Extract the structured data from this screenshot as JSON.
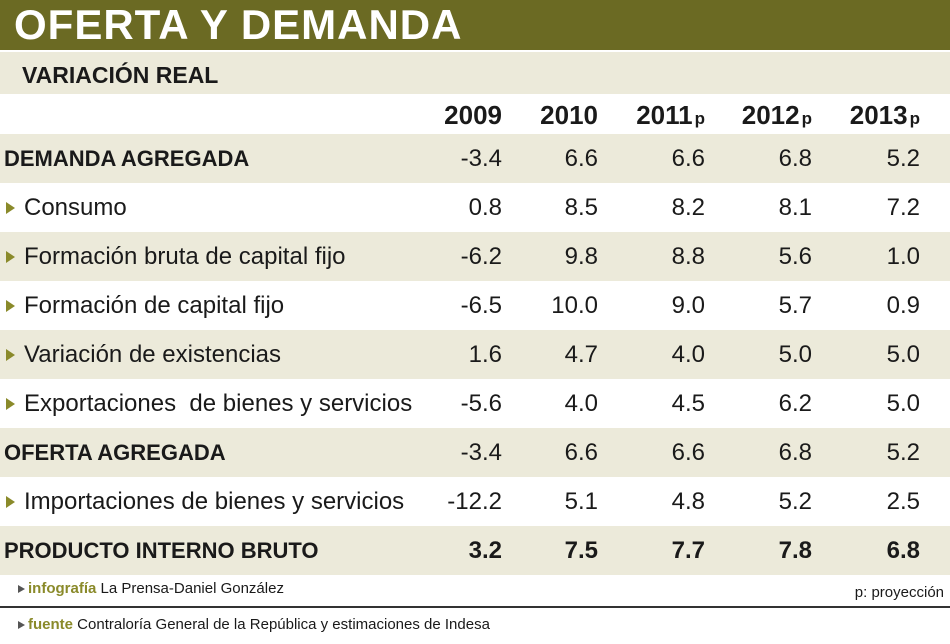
{
  "title": "OFERTA Y DEMANDA",
  "subtitle": "VARIACIÓN REAL",
  "table": {
    "columns": [
      {
        "year": "2009"
      },
      {
        "year": "2010"
      },
      {
        "year": "2011",
        "suffix": "p"
      },
      {
        "year": "2012",
        "suffix": "p"
      },
      {
        "year": "2013",
        "suffix": "p"
      }
    ],
    "rows": [
      {
        "label": "DEMANDA AGREGADA",
        "style": "group",
        "values": [
          "-3.4",
          "6.6",
          "6.6",
          "6.8",
          "5.2"
        ]
      },
      {
        "label": "Consumo",
        "style": "item",
        "values": [
          "0.8",
          "8.5",
          "8.2",
          "8.1",
          "7.2"
        ]
      },
      {
        "label": "Formación bruta de capital fijo",
        "style": "item",
        "values": [
          "-6.2",
          "9.8",
          "8.8",
          "5.6",
          "1.0"
        ]
      },
      {
        "label": "Formación de capital fijo",
        "style": "item",
        "values": [
          "-6.5",
          "10.0",
          "9.0",
          "5.7",
          "0.9"
        ]
      },
      {
        "label": "Variación de existencias",
        "style": "item",
        "values": [
          "1.6",
          "4.7",
          "4.0",
          "5.0",
          "5.0"
        ]
      },
      {
        "label": "Exportaciones  de bienes y servicios",
        "style": "item",
        "values": [
          "-5.6",
          "4.0",
          "4.5",
          "6.2",
          "5.0"
        ]
      },
      {
        "label": "OFERTA AGREGADA",
        "style": "group",
        "values": [
          "-3.4",
          "6.6",
          "6.6",
          "6.8",
          "5.2"
        ]
      },
      {
        "label": "Importaciones de bienes y servicios",
        "style": "item",
        "values": [
          "-12.2",
          "5.1",
          "4.8",
          "5.2",
          "2.5"
        ]
      },
      {
        "label": "PRODUCTO INTERNO BRUTO",
        "style": "total",
        "values": [
          "3.2",
          "7.5",
          "7.7",
          "7.8",
          "6.8"
        ]
      }
    ]
  },
  "footer": {
    "credit_label": "infografía",
    "credit": "La Prensa-Daniel González",
    "note": "p: proyección",
    "source_label": "fuente",
    "source": "Contraloría General de la República y estimaciones de Indesa"
  }
}
